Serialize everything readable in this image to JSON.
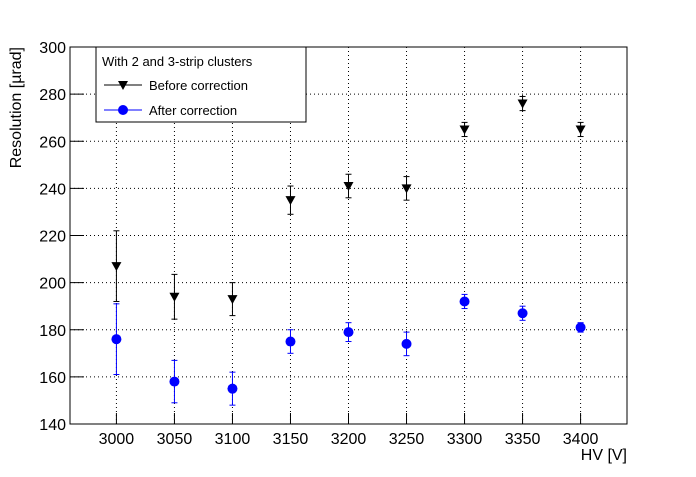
{
  "chart_data": {
    "type": "errorbar_scatter",
    "xlabel": "HV [V]",
    "ylabel": "Resolution [µrad]",
    "legend_title": "With 2 and 3-strip clusters",
    "legend": "upper left",
    "grid": true,
    "xlim": [
      2960,
      3440
    ],
    "ylim": [
      140,
      300
    ],
    "xticks": [
      3000,
      3050,
      3100,
      3150,
      3200,
      3250,
      3300,
      3350,
      3400
    ],
    "yticks": [
      140,
      160,
      180,
      200,
      220,
      240,
      260,
      280,
      300
    ],
    "x": [
      3000,
      3050,
      3100,
      3150,
      3200,
      3250,
      3300,
      3350,
      3400
    ],
    "series": [
      {
        "name": "Before correction",
        "color": "#000000",
        "marker": "triangle-down",
        "values": [
          207,
          194,
          193,
          235,
          241,
          240,
          265,
          276,
          265
        ],
        "errors": [
          15,
          9.5,
          7,
          6,
          5,
          5,
          3,
          3,
          3
        ]
      },
      {
        "name": "After correction",
        "color": "#0000ff",
        "marker": "circle",
        "values": [
          176,
          158,
          155,
          175,
          179,
          174,
          192,
          187,
          181
        ],
        "errors": [
          15,
          9,
          7,
          5,
          4,
          5,
          3,
          3,
          2
        ]
      }
    ]
  }
}
